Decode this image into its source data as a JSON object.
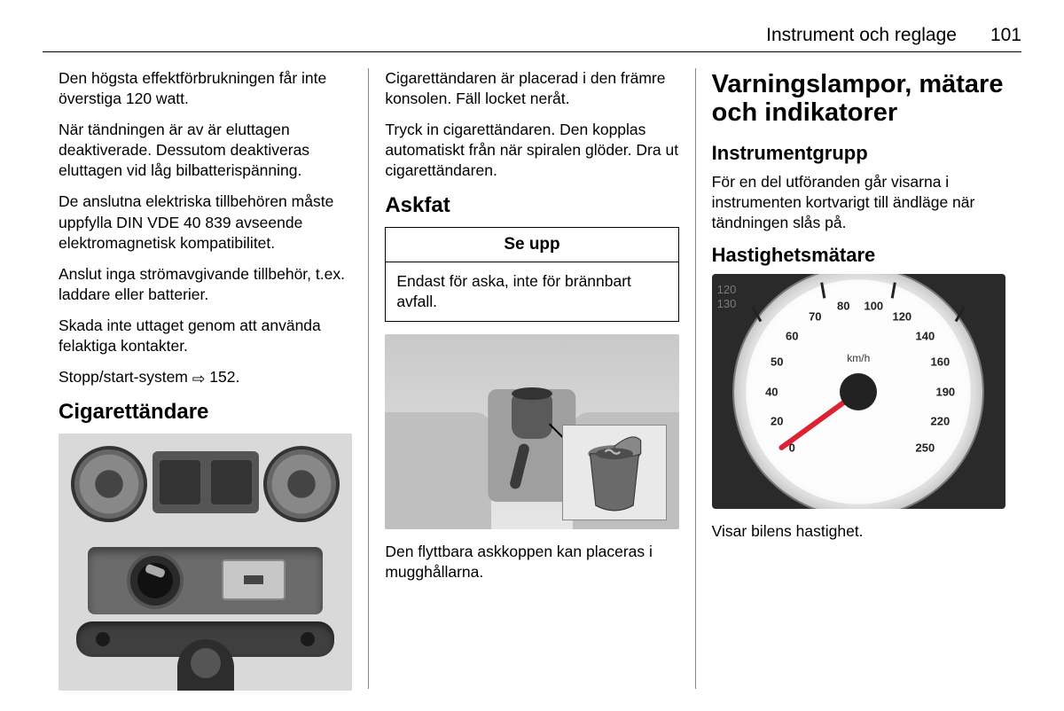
{
  "header": {
    "title": "Instrument och reglage",
    "page": "101"
  },
  "col1": {
    "p1": "Den högsta effektförbrukningen får inte överstiga 120 watt.",
    "p2": "När tändningen är av är eluttagen deaktiverade. Dessutom deaktiveras eluttagen vid låg bilbatterispänning.",
    "p3": "De anslutna elektriska tillbehören måste uppfylla DIN VDE 40 839 avseende elektromagnetisk kompatibilitet.",
    "p4": "Anslut inga strömavgivande tillbehör, t.ex. laddare eller batterier.",
    "p5": "Skada inte uttaget genom att använda felaktiga kontakter.",
    "p6a": "Stopp/start-system ",
    "p6b": " 152.",
    "h2": "Cigarettändare"
  },
  "col2": {
    "p1": "Cigarettändaren är placerad i den främre konsolen. Fäll locket neråt.",
    "p2": "Tryck in cigarettändaren. Den kopplas automatiskt från när spiralen glöder. Dra ut cigarettändaren.",
    "h2": "Askfat",
    "callout_head": "Se upp",
    "callout_body": "Endast för aska, inte för brännbart avfall.",
    "p3": "Den flyttbara askkoppen kan placeras i mugghållarna."
  },
  "col3": {
    "h1": "Varningslampor, mätare och indikatorer",
    "h3a": "Instrumentgrupp",
    "p1": "För en del utföranden går visarna i instrumenten kortvarigt till ändläge när tändningen slås på.",
    "h3b": "Hastighetsmätare",
    "p2": "Visar bilens hastighet."
  },
  "speedometer": {
    "unit": "km/h",
    "values": [
      0,
      20,
      40,
      50,
      60,
      70,
      80,
      100,
      120,
      140,
      160,
      190,
      220,
      250
    ],
    "start_deg": -130,
    "end_deg": 130,
    "label_radius": 98,
    "needle_color": "#d23",
    "side_labels": [
      "120",
      "130"
    ]
  }
}
